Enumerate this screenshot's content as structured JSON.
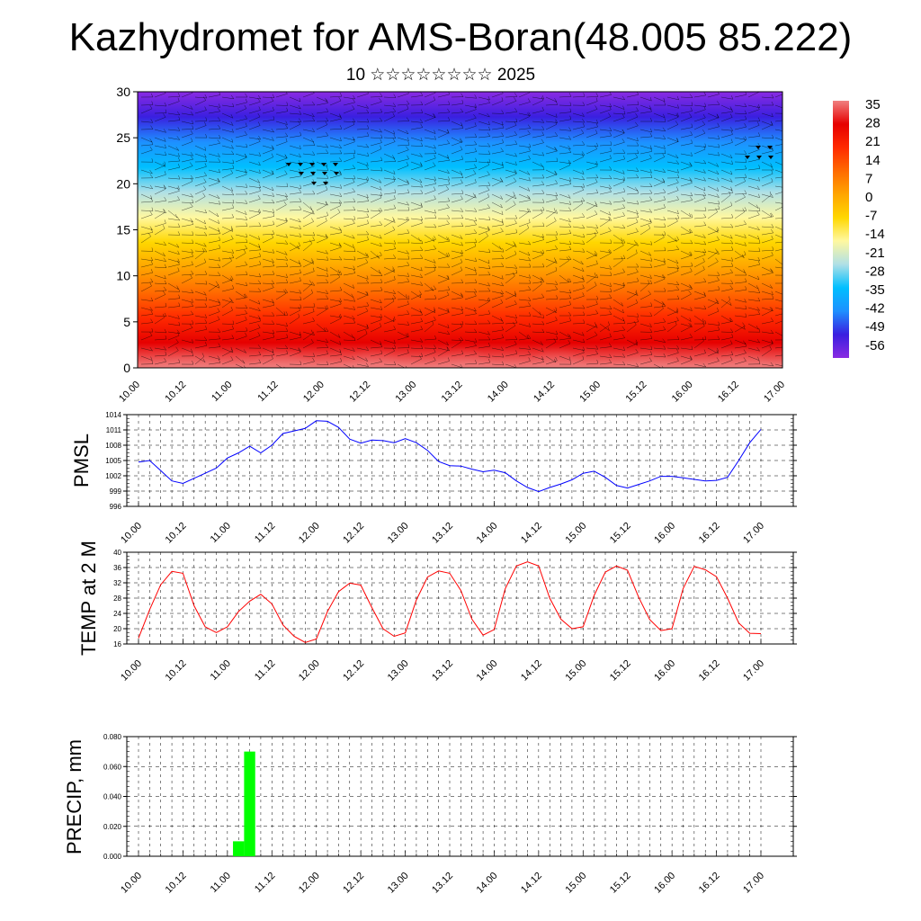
{
  "title": "Kazhydromet for AMS-Boran(48.005 85.222)",
  "subtitle": "10 ☆☆☆☆☆☆☆☆ 2025",
  "x_ticks": [
    "10.00",
    "10.12",
    "11.00",
    "11.12",
    "12.00",
    "12.12",
    "13.00",
    "13.12",
    "14.00",
    "14.12",
    "15.00",
    "15.12",
    "16.00",
    "16.12",
    "17.00"
  ],
  "chart_data": [
    {
      "type": "heatmap",
      "title": "",
      "xlabel": "",
      "ylabel": "",
      "x": [
        "10.00",
        "10.12",
        "11.00",
        "11.12",
        "12.00",
        "12.12",
        "13.00",
        "13.12",
        "14.00",
        "14.12",
        "15.00",
        "15.12",
        "16.00",
        "16.12",
        "17.00"
      ],
      "ylim": [
        0,
        30
      ],
      "y_ticks": [
        0,
        5,
        10,
        15,
        20,
        25,
        30
      ],
      "colorbar_labels": [
        "35",
        "28",
        "21",
        "14",
        "7",
        "0",
        "-7",
        "-14",
        "-21",
        "-28",
        "-35",
        "-42",
        "-49",
        "-56"
      ],
      "colorbar_range": [
        -60,
        38
      ],
      "colors": [
        "#8a2be2",
        "#3a1fe0",
        "#1e90ff",
        "#00bfff",
        "#b0e0e6",
        "#fff8a0",
        "#ffd700",
        "#ffa500",
        "#ff6a00",
        "#ff2a00",
        "#e60000",
        "#f08080"
      ],
      "overlay": "wind barbs"
    },
    {
      "type": "line",
      "ylabel": "PMSL",
      "ylim": [
        996,
        1014
      ],
      "y_ticks": [
        "996",
        "999",
        "1002",
        "1005",
        "1008",
        "1011",
        "1014"
      ],
      "x_range": [
        0,
        7
      ],
      "series": [
        {
          "color": "#0000ff",
          "x": [
            0.0,
            0.125,
            0.25,
            0.375,
            0.5,
            0.625,
            0.75,
            0.875,
            1.0,
            1.125,
            1.25,
            1.375,
            1.5,
            1.625,
            1.75,
            1.875,
            2.0,
            2.125,
            2.25,
            2.375,
            2.5,
            2.625,
            2.75,
            2.875,
            3.0,
            3.125,
            3.25,
            3.375,
            3.5,
            3.625,
            3.75,
            3.875,
            4.0,
            4.125,
            4.25,
            4.375,
            4.5,
            4.625,
            4.75,
            4.875,
            5.0,
            5.125,
            5.25,
            5.375,
            5.5,
            5.625,
            5.75,
            5.875,
            6.0,
            6.125,
            6.25,
            6.375,
            6.5,
            6.625,
            6.75,
            6.875,
            7.0
          ],
          "values": [
            1004.7,
            1005.0,
            1003.0,
            1001.0,
            1000.5,
            1001.5,
            1002.5,
            1003.5,
            1005.5,
            1006.5,
            1007.8,
            1006.5,
            1008.0,
            1010.3,
            1010.8,
            1011.3,
            1012.8,
            1012.7,
            1011.5,
            1009.2,
            1008.4,
            1009.0,
            1008.9,
            1008.5,
            1009.3,
            1008.5,
            1007.0,
            1004.8,
            1004.0,
            1003.9,
            1003.3,
            1002.8,
            1003.1,
            1002.6,
            1001.0,
            999.7,
            998.9,
            999.7,
            1000.4,
            1001.2,
            1002.5,
            1002.9,
            1001.7,
            1000.1,
            999.6,
            1000.3,
            1001.0,
            1001.9,
            1001.9,
            1001.6,
            1001.3,
            1001.0,
            1001.1,
            1001.7,
            1005.0,
            1008.5,
            1011.1
          ]
        }
      ]
    },
    {
      "type": "line",
      "ylabel": "TEMP at 2 M",
      "ylim": [
        16,
        40
      ],
      "y_ticks": [
        "16",
        "20",
        "24",
        "28",
        "32",
        "36",
        "40"
      ],
      "x_range": [
        0,
        7
      ],
      "series": [
        {
          "color": "#ff0000",
          "x": [
            0.0,
            0.125,
            0.25,
            0.375,
            0.5,
            0.625,
            0.75,
            0.875,
            1.0,
            1.125,
            1.25,
            1.375,
            1.5,
            1.625,
            1.75,
            1.875,
            2.0,
            2.125,
            2.25,
            2.375,
            2.5,
            2.625,
            2.75,
            2.875,
            3.0,
            3.125,
            3.25,
            3.375,
            3.5,
            3.625,
            3.75,
            3.875,
            4.0,
            4.125,
            4.25,
            4.375,
            4.5,
            4.625,
            4.75,
            4.875,
            5.0,
            5.125,
            5.25,
            5.375,
            5.5,
            5.625,
            5.75,
            5.875,
            6.0,
            6.125,
            6.25,
            6.375,
            6.5,
            6.625,
            6.75,
            6.875,
            7.0
          ],
          "values": [
            17.5,
            25.0,
            31.5,
            35.0,
            34.5,
            26.0,
            20.5,
            19.0,
            20.5,
            24.5,
            27.2,
            29.0,
            26.5,
            21.0,
            18.0,
            16.4,
            17.3,
            24.5,
            29.7,
            31.9,
            31.4,
            25.5,
            20.0,
            18.0,
            18.9,
            27.5,
            33.5,
            35.1,
            34.5,
            30.0,
            22.5,
            18.3,
            19.8,
            30.5,
            36.4,
            37.5,
            36.4,
            28.0,
            22.5,
            20.0,
            20.5,
            28.7,
            34.8,
            36.4,
            35.3,
            28.2,
            22.4,
            19.5,
            20.0,
            30.5,
            36.3,
            35.4,
            33.6,
            28.0,
            21.5,
            18.8,
            18.7
          ]
        }
      ]
    },
    {
      "type": "bar",
      "ylabel": "PRECIP, mm",
      "ylim": [
        0,
        0.08
      ],
      "y_ticks": [
        "0.000",
        "0.020",
        "0.040",
        "0.060",
        "0.080"
      ],
      "x_range": [
        0,
        7
      ],
      "color": "#00ff00",
      "x": [
        1.125,
        1.25
      ],
      "values": [
        0.01,
        0.07
      ]
    }
  ]
}
